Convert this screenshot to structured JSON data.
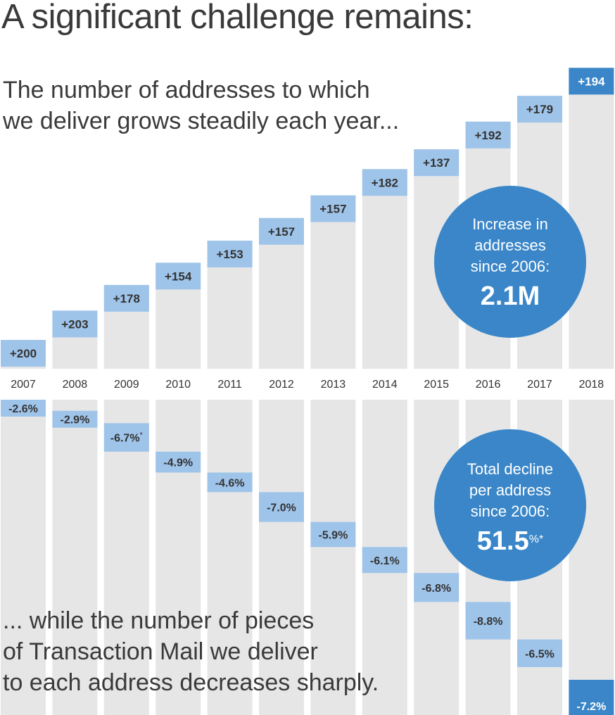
{
  "headline": "A significant challenge remains:",
  "caption_top": [
    "The number of addresses to which",
    "we deliver grows steadily each year..."
  ],
  "caption_bottom": [
    "... while the number of pieces",
    "of Transaction Mail we deliver",
    "to each address decreases sharply."
  ],
  "bubble_top": {
    "lines": [
      "Increase in",
      "addresses",
      "since 2006:"
    ],
    "value": "2.1M"
  },
  "bubble_bottom": {
    "lines": [
      "Total decline",
      "per address",
      "since 2006:"
    ],
    "value": "51.5",
    "value_suffix": "%*"
  },
  "colors": {
    "column": "#e6e6e6",
    "label_light": "#9fc4ea",
    "label_dark": "#3a86c8",
    "text_dark": "#333333",
    "bubble": "#3a86c8"
  },
  "chart_data": [
    {
      "type": "bar",
      "categories": [
        "2007",
        "2008",
        "2009",
        "2010",
        "2011",
        "2012",
        "2013",
        "2014",
        "2015",
        "2016",
        "2017",
        "2018"
      ],
      "values": [
        200,
        203,
        178,
        154,
        153,
        157,
        157,
        182,
        137,
        192,
        179,
        194
      ],
      "labels": [
        "+200",
        "+203",
        "+178",
        "+154",
        "+153",
        "+157",
        "+157",
        "+182",
        "+137",
        "+192",
        "+179",
        "+194"
      ]
    },
    {
      "type": "bar",
      "categories": [
        "2007",
        "2008",
        "2009",
        "2010",
        "2011",
        "2012",
        "2013",
        "2014",
        "2015",
        "2016",
        "2017",
        "2018"
      ],
      "values": [
        -2.6,
        -2.9,
        -6.7,
        -4.9,
        -4.6,
        -7.0,
        -5.9,
        -6.1,
        -6.8,
        -8.8,
        -6.5,
        -7.2
      ],
      "labels": [
        "-2.6%",
        "-2.9%",
        "-6.7%",
        "-4.9%",
        "-4.6%",
        "-7.0%",
        "-5.9%",
        "-6.1%",
        "-6.8%",
        "-8.8%",
        "-6.5%",
        "-7.2%"
      ],
      "label_marks": [
        "",
        "",
        "*",
        "",
        "",
        "",
        "",
        "",
        "",
        "",
        "",
        ""
      ]
    }
  ]
}
